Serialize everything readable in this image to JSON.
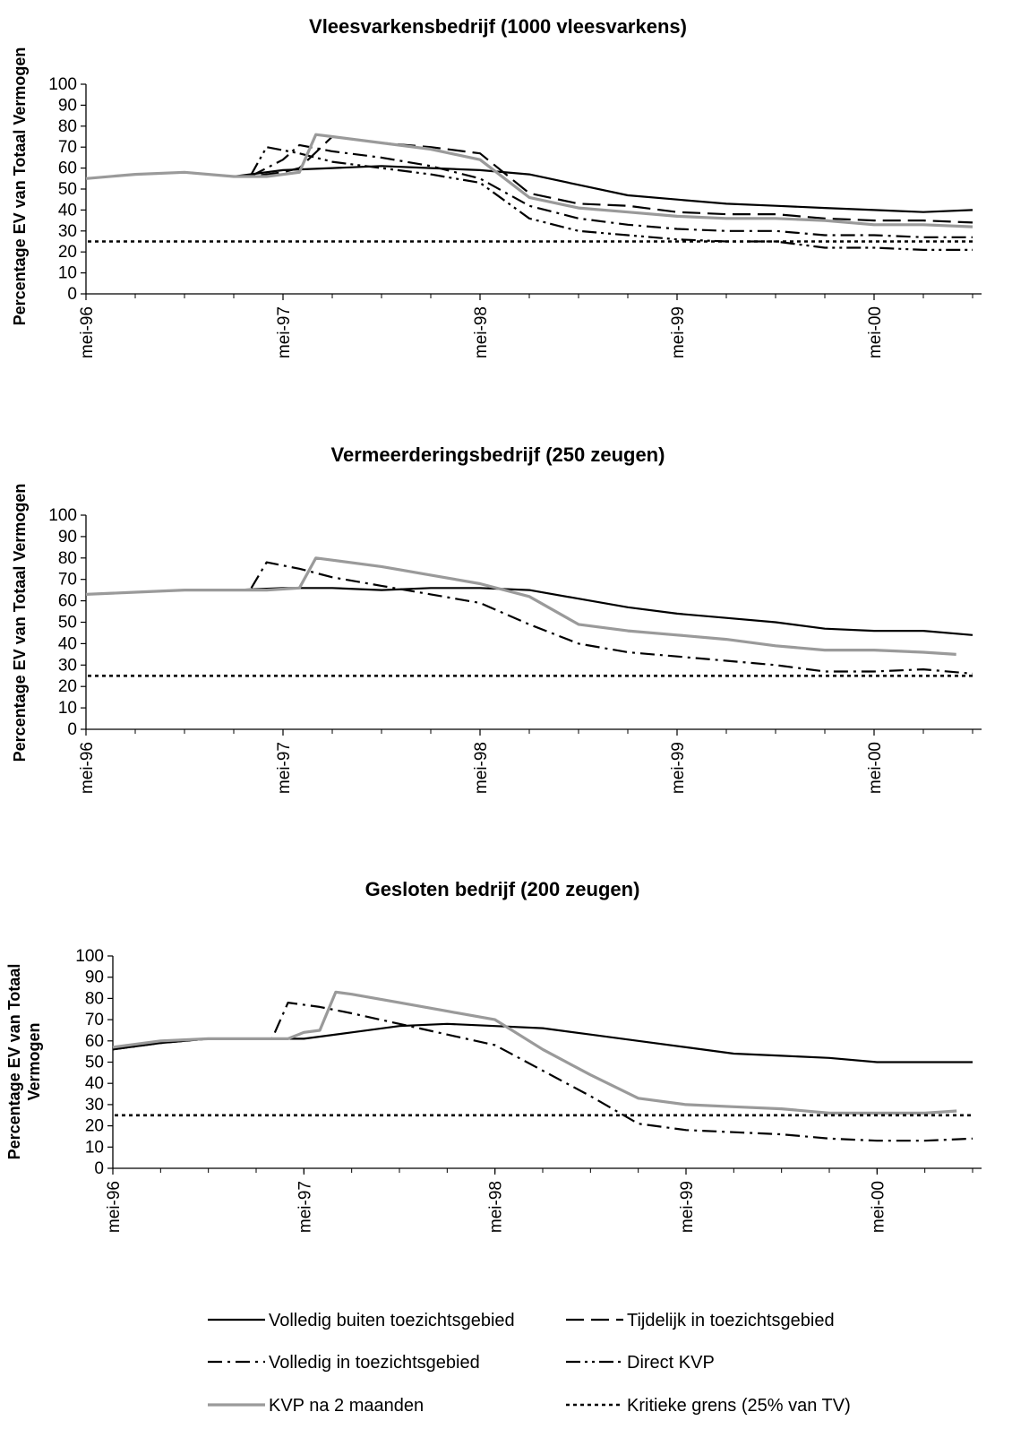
{
  "chart_data": [
    {
      "type": "line",
      "title": "Vleesvarkensbedrijf (1000 vleesvarkens)",
      "xlabel": "",
      "ylabel": "Percentage EV van Totaal Vermogen",
      "ylim": [
        0,
        100
      ],
      "yticks": [
        0,
        10,
        20,
        30,
        40,
        50,
        60,
        70,
        80,
        90,
        100
      ],
      "xlim": [
        0,
        54
      ],
      "xticks": [
        {
          "x": 0,
          "label": "mei-96"
        },
        {
          "x": 12,
          "label": "mei-97"
        },
        {
          "x": 24,
          "label": "mei-98"
        },
        {
          "x": 36,
          "label": "mei-99"
        },
        {
          "x": 48,
          "label": "mei-00"
        }
      ],
      "grid": false,
      "series": [
        {
          "name": "Volledig buiten toezichtsgebied",
          "style": "solid",
          "x": [
            0,
            3,
            6,
            9,
            12,
            15,
            18,
            21,
            24,
            27,
            30,
            33,
            36,
            39,
            42,
            45,
            48,
            51,
            54
          ],
          "y": [
            55,
            57,
            58,
            56,
            59,
            60,
            61,
            60,
            59,
            57,
            52,
            47,
            45,
            43,
            42,
            41,
            40,
            39,
            40
          ]
        },
        {
          "name": "Tijdelijk in toezichtsgebied",
          "style": "longdash",
          "x": [
            0,
            3,
            6,
            9,
            10,
            12,
            13,
            15,
            18,
            21,
            24,
            27,
            30,
            33,
            36,
            39,
            42,
            45,
            48,
            51,
            54
          ],
          "y": [
            55,
            57,
            58,
            56,
            56,
            58,
            60,
            75,
            72,
            70,
            67,
            48,
            43,
            42,
            39,
            38,
            38,
            36,
            35,
            35,
            34
          ]
        },
        {
          "name": "Volledig in toezichtsgebied",
          "style": "dashdot",
          "x": [
            0,
            3,
            6,
            9,
            10,
            12,
            13,
            15,
            18,
            21,
            24,
            27,
            30,
            33,
            36,
            39,
            42,
            45,
            48,
            51,
            54
          ],
          "y": [
            55,
            57,
            58,
            56,
            56,
            64,
            71,
            68,
            65,
            61,
            55,
            42,
            36,
            33,
            31,
            30,
            30,
            28,
            28,
            27,
            27
          ]
        },
        {
          "name": "Direct KVP",
          "style": "dashdotdot",
          "x": [
            0,
            3,
            6,
            9,
            10,
            11,
            13,
            15,
            18,
            21,
            24,
            27,
            30,
            33,
            36,
            39,
            42,
            45,
            48,
            51,
            54
          ],
          "y": [
            55,
            57,
            58,
            56,
            56,
            70,
            67,
            63,
            60,
            57,
            53,
            36,
            30,
            28,
            26,
            25,
            25,
            22,
            22,
            21,
            21
          ]
        },
        {
          "name": "KVP na 2 maanden",
          "style": "gray",
          "x": [
            0,
            3,
            6,
            9,
            11,
            13,
            14,
            15,
            18,
            21,
            24,
            27,
            30,
            33,
            36,
            39,
            42,
            45,
            48,
            51,
            54
          ],
          "y": [
            55,
            57,
            58,
            56,
            56,
            58,
            76,
            75,
            72,
            69,
            64,
            46,
            41,
            39,
            37,
            36,
            36,
            35,
            33,
            33,
            32
          ]
        },
        {
          "name": "Kritieke grens (25% van TV)",
          "style": "threshold",
          "x": [
            0,
            54
          ],
          "y": [
            25,
            25
          ]
        }
      ]
    },
    {
      "type": "line",
      "title": "Vermeerderingsbedrijf (250 zeugen)",
      "xlabel": "",
      "ylabel": "Percentage EV van Totaal Vermogen",
      "ylim": [
        0,
        100
      ],
      "yticks": [
        0,
        10,
        20,
        30,
        40,
        50,
        60,
        70,
        80,
        90,
        100
      ],
      "xlim": [
        0,
        54
      ],
      "xticks": [
        {
          "x": 0,
          "label": "mei-96"
        },
        {
          "x": 12,
          "label": "mei-97"
        },
        {
          "x": 24,
          "label": "mei-98"
        },
        {
          "x": 36,
          "label": "mei-99"
        },
        {
          "x": 48,
          "label": "mei-00"
        }
      ],
      "grid": false,
      "series": [
        {
          "name": "Volledig buiten toezichtsgebied",
          "style": "solid",
          "x": [
            0,
            3,
            6,
            9,
            12,
            15,
            18,
            21,
            24,
            27,
            30,
            33,
            36,
            39,
            42,
            45,
            48,
            51,
            54
          ],
          "y": [
            63,
            64,
            65,
            65,
            66,
            66,
            65,
            66,
            66,
            65,
            61,
            57,
            54,
            52,
            50,
            47,
            46,
            46,
            44
          ]
        },
        {
          "name": "Direct KVP",
          "style": "dashdot",
          "x": [
            0,
            3,
            6,
            9,
            10,
            11,
            13,
            15,
            18,
            21,
            24,
            27,
            30,
            33,
            36,
            39,
            42,
            45,
            48,
            51,
            54
          ],
          "y": [
            63,
            64,
            65,
            65,
            65,
            78,
            75,
            71,
            67,
            63,
            59,
            49,
            40,
            36,
            34,
            32,
            30,
            27,
            27,
            28,
            26
          ]
        },
        {
          "name": "KVP na 2 maanden",
          "style": "gray",
          "x": [
            0,
            3,
            6,
            9,
            11,
            13,
            14,
            15,
            18,
            21,
            24,
            27,
            30,
            33,
            36,
            39,
            42,
            45,
            48,
            51,
            53
          ],
          "y": [
            63,
            64,
            65,
            65,
            65,
            66,
            80,
            79,
            76,
            72,
            68,
            62,
            49,
            46,
            44,
            42,
            39,
            37,
            37,
            36,
            35
          ]
        },
        {
          "name": "Kritieke grens (25% van TV)",
          "style": "threshold",
          "x": [
            0,
            54
          ],
          "y": [
            25,
            25
          ]
        }
      ]
    },
    {
      "type": "line",
      "title": "Gesloten bedrijf (200 zeugen)",
      "xlabel": "",
      "ylabel": "Percentage EV van Totaal Vermogen",
      "ylim": [
        0,
        100
      ],
      "yticks": [
        0,
        10,
        20,
        30,
        40,
        50,
        60,
        70,
        80,
        90,
        100
      ],
      "xlim": [
        0,
        54
      ],
      "xticks": [
        {
          "x": 0,
          "label": "mei-96"
        },
        {
          "x": 12,
          "label": "mei-97"
        },
        {
          "x": 24,
          "label": "mei-98"
        },
        {
          "x": 36,
          "label": "mei-99"
        },
        {
          "x": 48,
          "label": "mei-00"
        }
      ],
      "grid": false,
      "series": [
        {
          "name": "Volledig buiten toezichtsgebied",
          "style": "solid",
          "x": [
            0,
            3,
            6,
            9,
            10,
            12,
            15,
            18,
            21,
            24,
            27,
            30,
            33,
            36,
            39,
            42,
            45,
            48,
            51,
            54
          ],
          "y": [
            56,
            59,
            61,
            61,
            61,
            61,
            64,
            67,
            68,
            67,
            66,
            63,
            60,
            57,
            54,
            53,
            52,
            50,
            50,
            50
          ]
        },
        {
          "name": "Direct KVP",
          "style": "dashdot",
          "x": [
            0,
            3,
            6,
            9,
            10,
            11,
            13,
            15,
            18,
            21,
            24,
            27,
            30,
            33,
            36,
            39,
            42,
            45,
            48,
            51,
            54
          ],
          "y": [
            56,
            59,
            61,
            61,
            61,
            78,
            76,
            73,
            68,
            63,
            58,
            46,
            34,
            21,
            18,
            17,
            16,
            14,
            13,
            13,
            14
          ]
        },
        {
          "name": "KVP na 2 maanden",
          "style": "gray",
          "x": [
            0,
            3,
            6,
            9,
            11,
            12,
            13,
            14,
            15,
            18,
            21,
            24,
            27,
            30,
            33,
            36,
            39,
            42,
            45,
            48,
            51,
            53
          ],
          "y": [
            57,
            60,
            61,
            61,
            61,
            64,
            65,
            83,
            82,
            78,
            74,
            70,
            56,
            44,
            33,
            30,
            29,
            28,
            26,
            26,
            26,
            27
          ]
        },
        {
          "name": "Kritieke grens (25% van TV)",
          "style": "threshold",
          "x": [
            0,
            54
          ],
          "y": [
            25,
            25
          ]
        }
      ]
    }
  ],
  "ylabel_lines_chart3": [
    "Percentage EV van Totaal",
    "Vermogen"
  ],
  "legend": {
    "items": [
      {
        "label": "Volledig buiten toezichtsgebied",
        "style": "solid"
      },
      {
        "label": "Tijdelijk in toezichtsgebied",
        "style": "longdash"
      },
      {
        "label": "Volledig in toezichtsgebied",
        "style": "dashdot"
      },
      {
        "label": "Direct KVP",
        "style": "dashdotdot"
      },
      {
        "label": "KVP na 2 maanden",
        "style": "gray"
      },
      {
        "label": "Kritieke grens (25% van TV)",
        "style": "threshold"
      }
    ]
  }
}
